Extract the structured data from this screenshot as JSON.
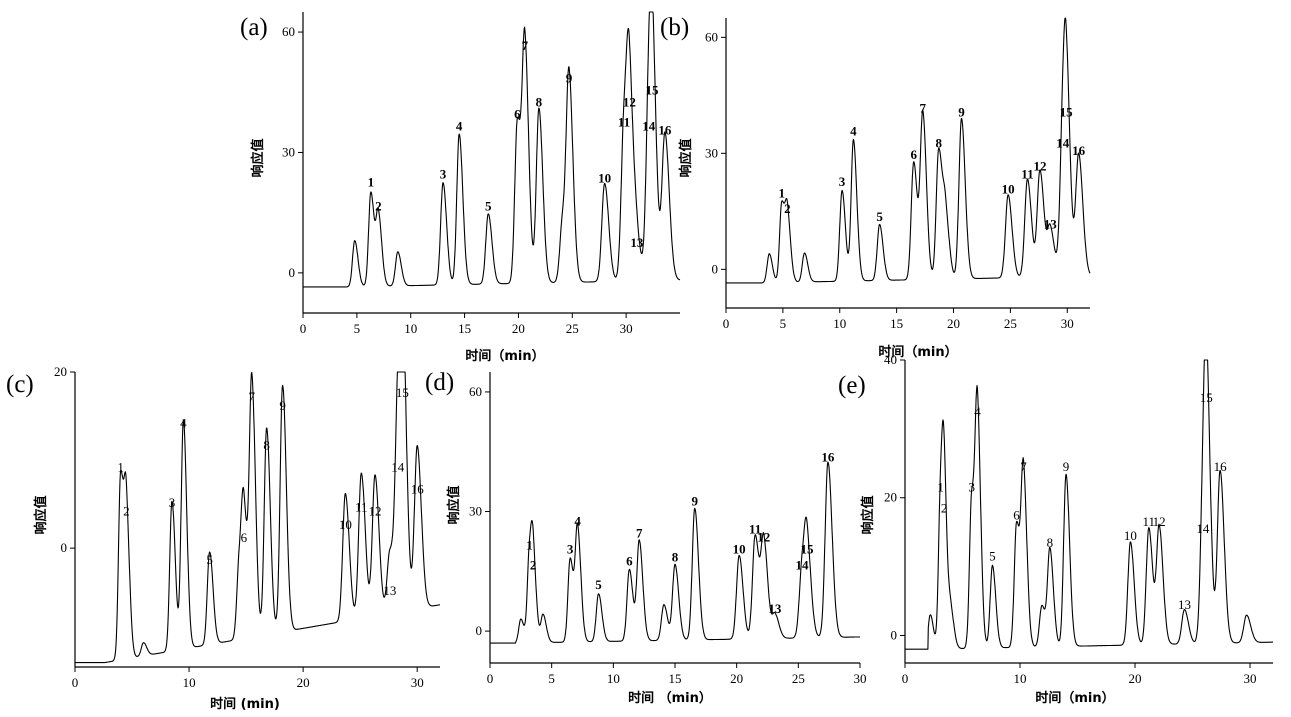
{
  "chart_data": [
    {
      "panel_label": "(a)",
      "type": "line",
      "xlabel": "时间（min）",
      "ylabel": "响应值",
      "xlim": [
        0,
        35
      ],
      "ylim": [
        -10,
        65
      ],
      "xticks": [
        "0",
        "5",
        "10",
        "15",
        "20",
        "25",
        "30"
      ],
      "yticks": [
        "0",
        "30",
        "60"
      ],
      "baseline": -3.5,
      "label_weight": "bold",
      "peaks": [
        {
          "label": "1",
          "t": 6.3,
          "h": 20
        },
        {
          "label": "2",
          "t": 7.0,
          "h": 14
        },
        {
          "label": "3",
          "t": 13.0,
          "h": 22
        },
        {
          "label": "4",
          "t": 14.5,
          "h": 34
        },
        {
          "label": "5",
          "t": 17.2,
          "h": 14
        },
        {
          "label": "6",
          "t": 19.9,
          "h": 37
        },
        {
          "label": "7",
          "t": 20.6,
          "h": 54
        },
        {
          "label": "8",
          "t": 21.9,
          "h": 40
        },
        {
          "label": "9",
          "t": 24.7,
          "h": 46
        },
        {
          "label": "10",
          "t": 28.0,
          "h": 21
        },
        {
          "label": "11",
          "t": 29.8,
          "h": 35
        },
        {
          "label": "12",
          "t": 30.3,
          "h": 40
        },
        {
          "label": "13",
          "t": 31.0,
          "h": 5
        },
        {
          "label": "14",
          "t": 32.1,
          "h": 34
        },
        {
          "label": "15",
          "t": 32.4,
          "h": 43
        },
        {
          "label": "16",
          "t": 33.6,
          "h": 33
        }
      ],
      "minor_peaks": [
        {
          "t": 4.8,
          "h": 8
        },
        {
          "t": 8.8,
          "h": 5
        },
        {
          "t": 24.1,
          "h": 12
        }
      ]
    },
    {
      "panel_label": "(b)",
      "type": "line",
      "xlabel": "时间（min）",
      "ylabel": "响应值",
      "xlim": [
        0,
        32
      ],
      "ylim": [
        -10,
        65
      ],
      "xticks": [
        "0",
        "5",
        "10",
        "15",
        "20",
        "25",
        "30"
      ],
      "yticks": [
        "0",
        "30",
        "60"
      ],
      "baseline": -3.5,
      "label_weight": "bold",
      "peaks": [
        {
          "label": "1",
          "t": 4.9,
          "h": 17
        },
        {
          "label": "2",
          "t": 5.4,
          "h": 13
        },
        {
          "label": "3",
          "t": 10.2,
          "h": 20
        },
        {
          "label": "4",
          "t": 11.2,
          "h": 33
        },
        {
          "label": "5",
          "t": 13.5,
          "h": 11
        },
        {
          "label": "6",
          "t": 16.5,
          "h": 27
        },
        {
          "label": "7",
          "t": 17.3,
          "h": 39
        },
        {
          "label": "8",
          "t": 18.7,
          "h": 30
        },
        {
          "label": "9",
          "t": 20.7,
          "h": 38
        },
        {
          "label": "10",
          "t": 24.8,
          "h": 18
        },
        {
          "label": "11",
          "t": 26.5,
          "h": 22
        },
        {
          "label": "12",
          "t": 27.6,
          "h": 24
        },
        {
          "label": "13",
          "t": 28.5,
          "h": 9
        },
        {
          "label": "14",
          "t": 29.6,
          "h": 30
        },
        {
          "label": "15",
          "t": 29.9,
          "h": 38
        },
        {
          "label": "16",
          "t": 31.0,
          "h": 28
        }
      ],
      "minor_peaks": [
        {
          "t": 3.8,
          "h": 4
        },
        {
          "t": 6.9,
          "h": 4
        },
        {
          "t": 19.3,
          "h": 12
        }
      ]
    },
    {
      "panel_label": "(c)",
      "type": "line",
      "xlabel": "时间 (min)",
      "ylabel": "响应值",
      "xlim": [
        0,
        32
      ],
      "ylim": [
        -13.5,
        20
      ],
      "xticks": [
        "0",
        "10",
        "20",
        "30"
      ],
      "yticks": [
        "0",
        "20"
      ],
      "baseline": -13,
      "label_weight": "normal",
      "peaks": [
        {
          "label": "1",
          "t": 4.0,
          "h": 8
        },
        {
          "label": "2",
          "t": 4.5,
          "h": 3
        },
        {
          "label": "3",
          "t": 8.5,
          "h": 4
        },
        {
          "label": "4",
          "t": 9.5,
          "h": 13
        },
        {
          "label": "5",
          "t": 11.8,
          "h": -2.5
        },
        {
          "label": "6",
          "t": 14.8,
          "h": 0
        },
        {
          "label": "7",
          "t": 15.5,
          "h": 16
        },
        {
          "label": "8",
          "t": 16.8,
          "h": 10.5
        },
        {
          "label": "9",
          "t": 18.2,
          "h": 15
        },
        {
          "label": "10",
          "t": 23.7,
          "h": 1.5
        },
        {
          "label": "11",
          "t": 25.1,
          "h": 3.5
        },
        {
          "label": "12",
          "t": 26.3,
          "h": 3
        },
        {
          "label": "13",
          "t": 27.6,
          "h": -6
        },
        {
          "label": "14",
          "t": 28.3,
          "h": 8
        },
        {
          "label": "15",
          "t": 28.7,
          "h": 16.5
        },
        {
          "label": "16",
          "t": 30.0,
          "h": 5.5
        }
      ],
      "minor_peaks": [
        {
          "t": 6.0,
          "h": -11.5
        },
        {
          "t": 14.4,
          "h": -4.5
        }
      ]
    },
    {
      "panel_label": "(d)",
      "type": "line",
      "xlabel": "时间 （min）",
      "ylabel": "响应值",
      "xlim": [
        0,
        30
      ],
      "ylim": [
        -8,
        65
      ],
      "xticks": [
        "0",
        "5",
        "10",
        "15",
        "20",
        "25",
        "30"
      ],
      "yticks": [
        "0",
        "30",
        "60"
      ],
      "baseline": -3,
      "label_weight": "bold",
      "peaks": [
        {
          "label": "1",
          "t": 3.2,
          "h": 19
        },
        {
          "label": "2",
          "t": 3.5,
          "h": 14
        },
        {
          "label": "3",
          "t": 6.5,
          "h": 18
        },
        {
          "label": "4",
          "t": 7.1,
          "h": 25
        },
        {
          "label": "5",
          "t": 8.8,
          "h": 9
        },
        {
          "label": "6",
          "t": 11.3,
          "h": 15
        },
        {
          "label": "7",
          "t": 12.1,
          "h": 22
        },
        {
          "label": "8",
          "t": 15.0,
          "h": 16
        },
        {
          "label": "9",
          "t": 16.6,
          "h": 30
        },
        {
          "label": "10",
          "t": 20.2,
          "h": 18
        },
        {
          "label": "11",
          "t": 21.5,
          "h": 23
        },
        {
          "label": "12",
          "t": 22.2,
          "h": 21
        },
        {
          "label": "13",
          "t": 23.1,
          "h": 3
        },
        {
          "label": "14",
          "t": 25.3,
          "h": 14
        },
        {
          "label": "15",
          "t": 25.7,
          "h": 18
        },
        {
          "label": "16",
          "t": 27.4,
          "h": 41
        }
      ],
      "minor_peaks": [
        {
          "t": 2.5,
          "h": 3
        },
        {
          "t": 4.3,
          "h": 4
        },
        {
          "t": 14.1,
          "h": 6
        }
      ]
    },
    {
      "panel_label": "(e)",
      "type": "line",
      "xlabel": "时间（min）",
      "ylabel": "响应值",
      "xlim": [
        0,
        32
      ],
      "ylim": [
        -4,
        40
      ],
      "xticks": [
        "0",
        "10",
        "20",
        "30"
      ],
      "yticks": [
        "0",
        "20",
        "40"
      ],
      "baseline": -2,
      "label_weight": "normal",
      "peaks": [
        {
          "label": "1",
          "t": 3.1,
          "h": 20
        },
        {
          "label": "2",
          "t": 3.4,
          "h": 17
        },
        {
          "label": "3",
          "t": 5.8,
          "h": 20
        },
        {
          "label": "4",
          "t": 6.3,
          "h": 31
        },
        {
          "label": "5",
          "t": 7.6,
          "h": 10
        },
        {
          "label": "6",
          "t": 9.7,
          "h": 16
        },
        {
          "label": "7",
          "t": 10.3,
          "h": 23
        },
        {
          "label": "8",
          "t": 12.6,
          "h": 12
        },
        {
          "label": "9",
          "t": 14.0,
          "h": 23
        },
        {
          "label": "10",
          "t": 19.6,
          "h": 13
        },
        {
          "label": "11",
          "t": 21.2,
          "h": 15
        },
        {
          "label": "12",
          "t": 22.1,
          "h": 15
        },
        {
          "label": "13",
          "t": 24.3,
          "h": 3
        },
        {
          "label": "14",
          "t": 25.9,
          "h": 14
        },
        {
          "label": "15",
          "t": 26.2,
          "h": 33
        },
        {
          "label": "16",
          "t": 27.4,
          "h": 23
        }
      ],
      "minor_peaks": [
        {
          "t": 2.2,
          "h": 3
        },
        {
          "t": 4.0,
          "h": 3
        },
        {
          "t": 11.9,
          "h": 4
        },
        {
          "t": 29.7,
          "h": 2
        }
      ]
    }
  ]
}
